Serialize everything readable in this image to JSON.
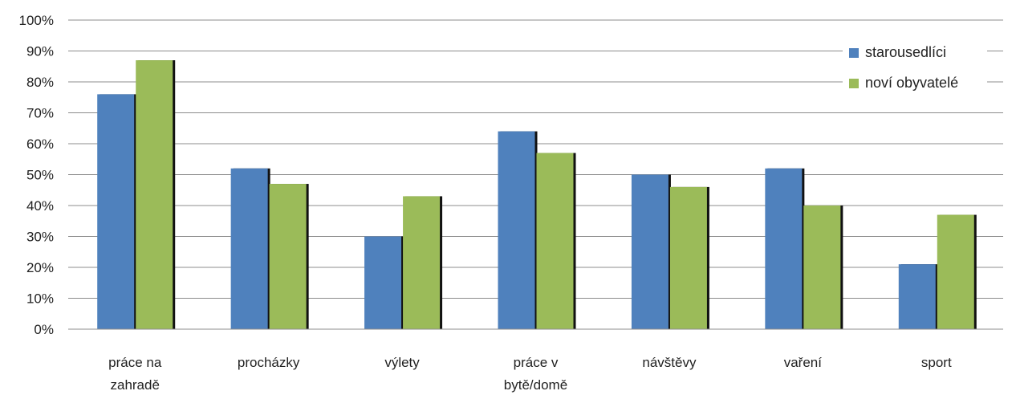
{
  "chart_data": {
    "type": "bar",
    "categories": [
      [
        "práce na",
        "zahradě"
      ],
      [
        "procházky"
      ],
      [
        "výlety"
      ],
      [
        "práce v",
        "bytě/domě"
      ],
      [
        "návštěvy"
      ],
      [
        "vaření"
      ],
      [
        "sport"
      ]
    ],
    "series": [
      {
        "name": "starousedlíci",
        "color": "#4F81BD",
        "values": [
          76,
          52,
          30,
          64,
          50,
          52,
          21
        ]
      },
      {
        "name": "noví obyvatelé",
        "color": "#9BBB59",
        "values": [
          87,
          47,
          43,
          57,
          46,
          40,
          37
        ]
      }
    ],
    "ylim": [
      0,
      100
    ],
    "yticks": [
      "0%",
      "10%",
      "20%",
      "30%",
      "40%",
      "50%",
      "60%",
      "70%",
      "80%",
      "90%",
      "100%"
    ],
    "grid": true,
    "legend_position": "top-right",
    "title": "",
    "xlabel": "",
    "ylabel": ""
  }
}
